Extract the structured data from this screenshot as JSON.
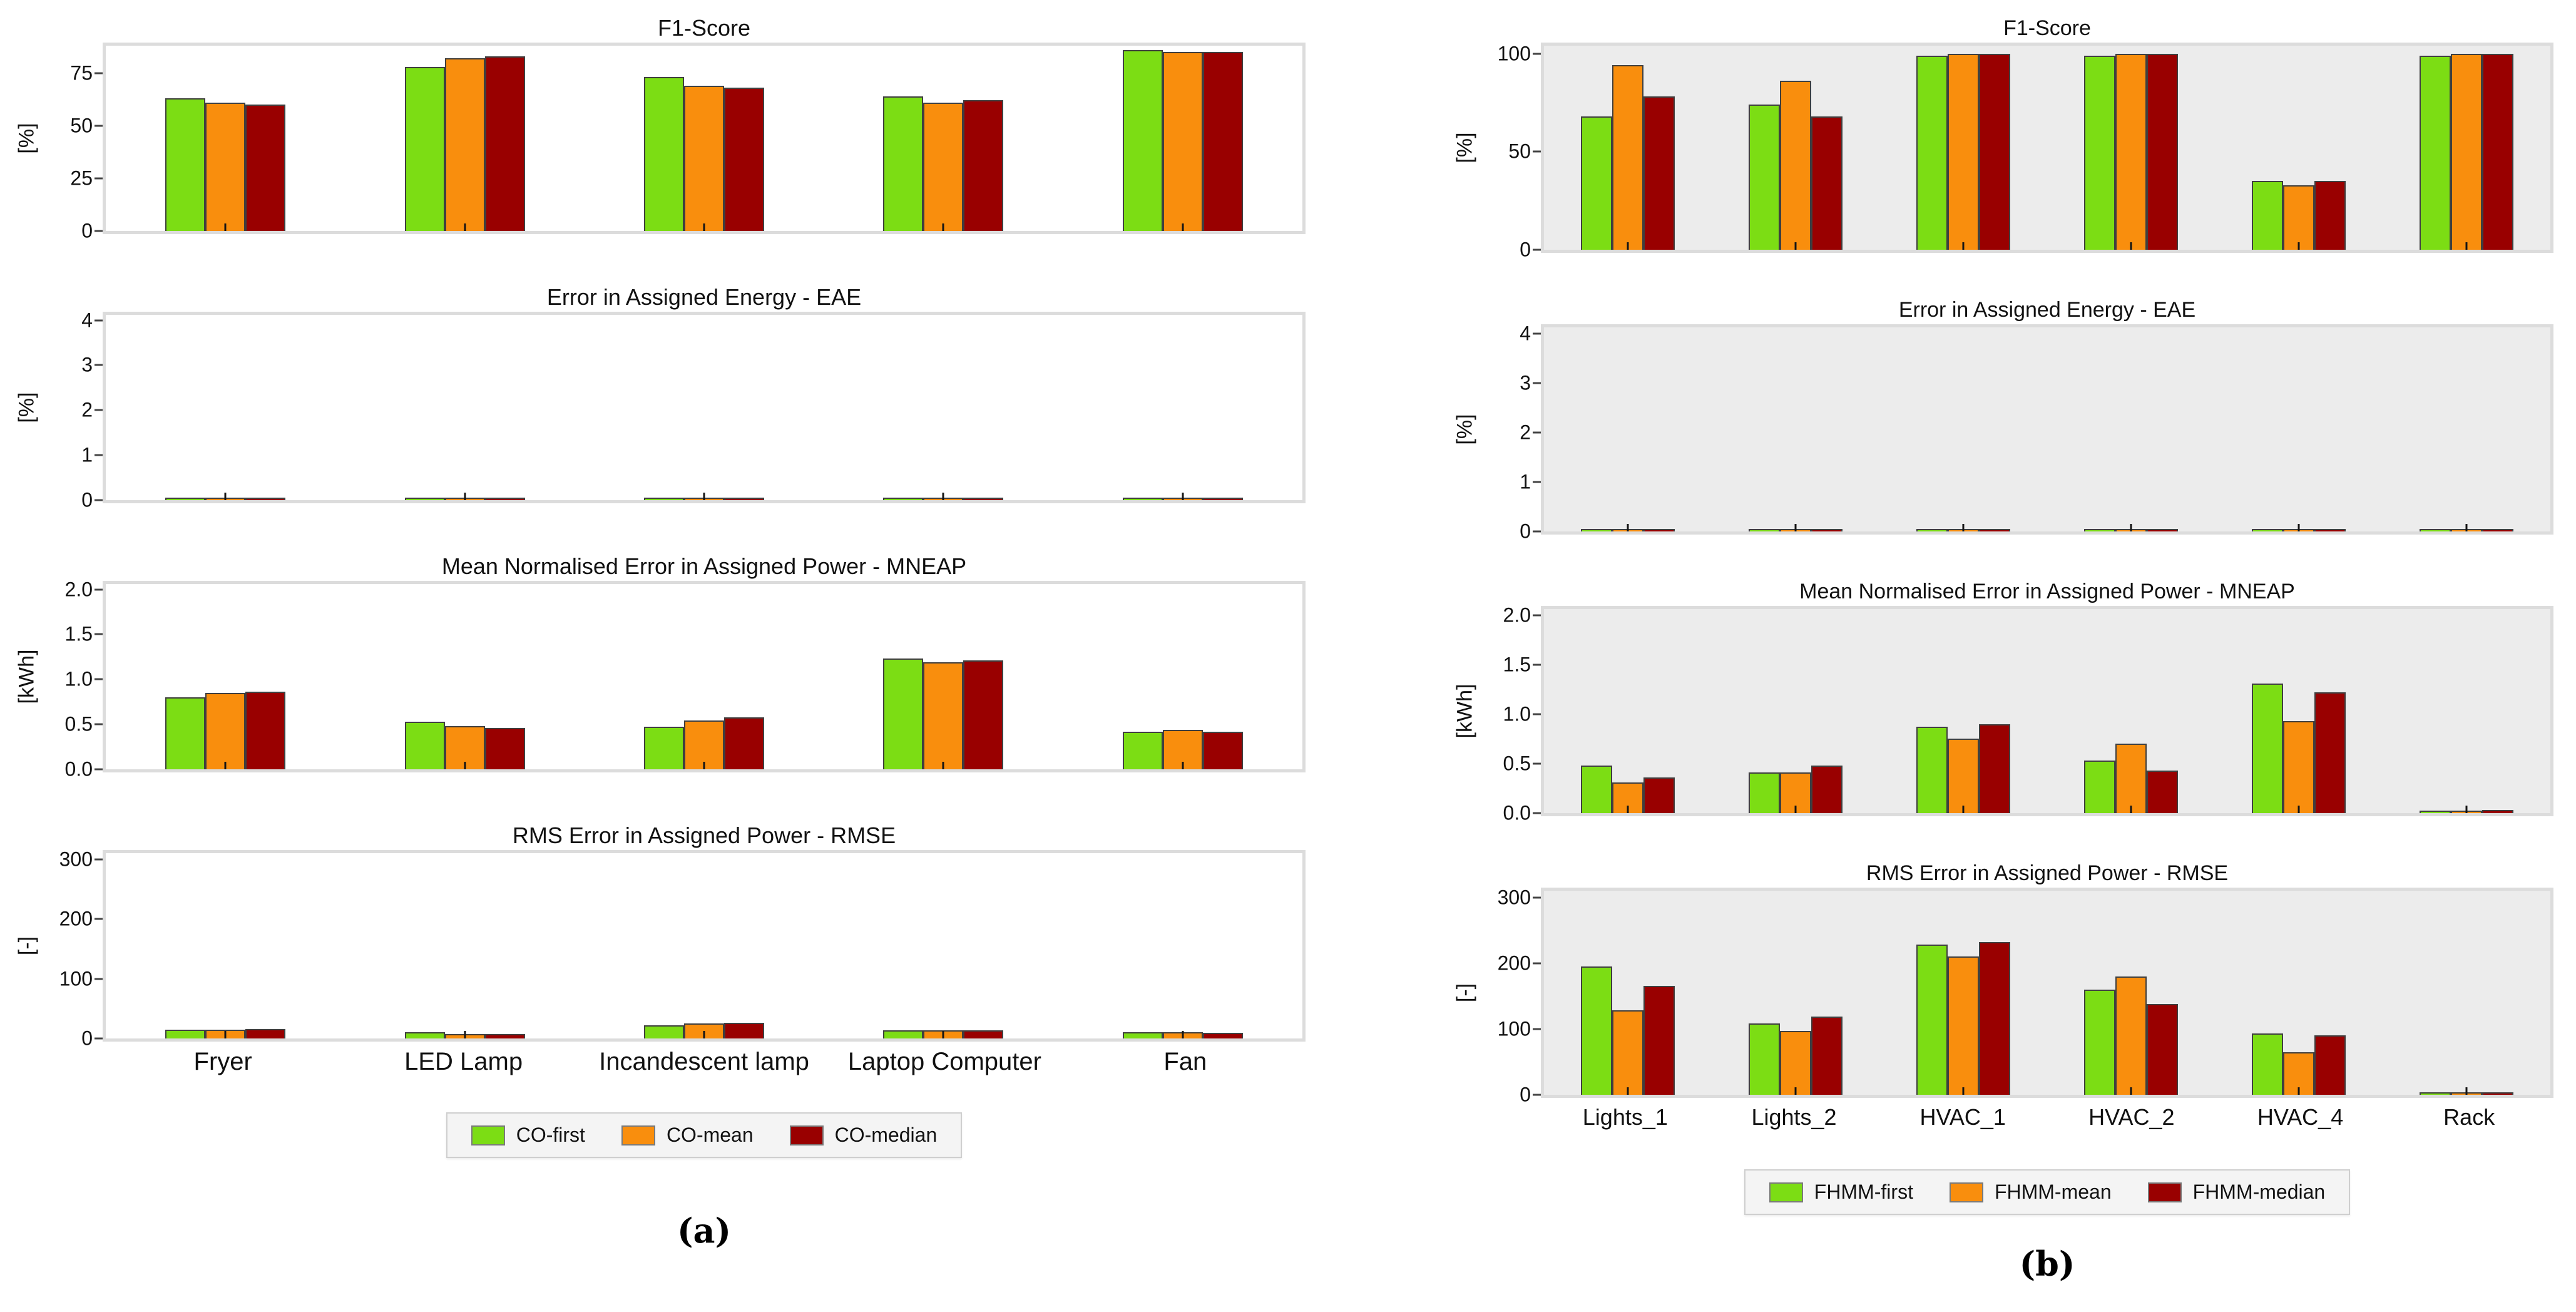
{
  "chart_data": {
    "type": "bar",
    "legend_position": "bottom",
    "grid": false,
    "bar_edge_color": "#3f3f3f",
    "panels": [
      {
        "id": "a",
        "caption": "(a)",
        "plot_background": "#ffffff",
        "categories": [
          "Fryer",
          "LED Lamp",
          "Incandescent lamp",
          "Laptop Computer",
          "Fan"
        ],
        "legend": [
          {
            "name": "CO-first",
            "color": "#7CDD14"
          },
          {
            "name": "CO-mean",
            "color": "#F98E0D"
          },
          {
            "name": "CO-median",
            "color": "#990000"
          }
        ],
        "charts": [
          {
            "title": "F1-Score",
            "ylabel": "[%]",
            "ylim": [
              0,
              88
            ],
            "yticks": [
              {
                "label": "0",
                "value": 0
              },
              {
                "label": "25",
                "value": 25
              },
              {
                "label": "50",
                "value": 50
              },
              {
                "label": "75",
                "value": 75
              }
            ],
            "series": [
              {
                "name": "CO-first",
                "values": [
                  63,
                  78,
                  73,
                  64,
                  86
                ]
              },
              {
                "name": "CO-mean",
                "values": [
                  61,
                  82,
                  69,
                  61,
                  85
                ]
              },
              {
                "name": "CO-median",
                "values": [
                  60,
                  83,
                  68,
                  62,
                  85
                ]
              }
            ]
          },
          {
            "title": "Error in Assigned Energy - EAE",
            "ylabel": "[%]",
            "ylim": [
              0,
              4.12
            ],
            "yticks": [
              {
                "label": "0",
                "value": 0
              },
              {
                "label": "1",
                "value": 1
              },
              {
                "label": "2",
                "value": 2
              },
              {
                "label": "3",
                "value": 3
              },
              {
                "label": "4",
                "value": 4
              }
            ],
            "series": [
              {
                "name": "CO-first",
                "values": [
                  0.02,
                  0.02,
                  0.02,
                  0.02,
                  0.02
                ]
              },
              {
                "name": "CO-mean",
                "values": [
                  0.02,
                  0.02,
                  0.02,
                  0.02,
                  0.02
                ]
              },
              {
                "name": "CO-median",
                "values": [
                  0.02,
                  0.02,
                  0.02,
                  0.02,
                  0.02
                ]
              }
            ]
          },
          {
            "title": "Mean Normalised Error in Assigned Power - MNEAP",
            "ylabel": "[kWh]",
            "ylim": [
              0,
              2.06
            ],
            "yticks": [
              {
                "label": "0.0",
                "value": 0
              },
              {
                "label": "0.5",
                "value": 0.5
              },
              {
                "label": "1.0",
                "value": 1
              },
              {
                "label": "1.5",
                "value": 1.5
              },
              {
                "label": "2.0",
                "value": 2
              }
            ],
            "series": [
              {
                "name": "CO-first",
                "values": [
                  0.8,
                  0.53,
                  0.47,
                  1.23,
                  0.42
                ]
              },
              {
                "name": "CO-mean",
                "values": [
                  0.85,
                  0.48,
                  0.54,
                  1.19,
                  0.44
                ]
              },
              {
                "name": "CO-median",
                "values": [
                  0.86,
                  0.46,
                  0.58,
                  1.21,
                  0.42
                ]
              }
            ]
          },
          {
            "title": "RMS Error in Assigned Power - RMSE",
            "ylabel": "[-]",
            "ylim": [
              0,
              310
            ],
            "yticks": [
              {
                "label": "0",
                "value": 0
              },
              {
                "label": "100",
                "value": 100
              },
              {
                "label": "200",
                "value": 200
              },
              {
                "label": "300",
                "value": 300
              }
            ],
            "series": [
              {
                "name": "CO-first",
                "values": [
                  15,
                  10,
                  22,
                  14,
                  10
                ]
              },
              {
                "name": "CO-mean",
                "values": [
                  15,
                  7,
                  25,
                  14,
                  10
                ]
              },
              {
                "name": "CO-median",
                "values": [
                  16,
                  7,
                  26,
                  14,
                  9
                ]
              }
            ]
          }
        ]
      },
      {
        "id": "b",
        "caption": "(b)",
        "plot_background": "#ececec",
        "categories": [
          "Lights_1",
          "Lights_2",
          "HVAC_1",
          "HVAC_2",
          "HVAC_4",
          "Rack"
        ],
        "legend": [
          {
            "name": "FHMM-first",
            "color": "#7CDD14"
          },
          {
            "name": "FHMM-mean",
            "color": "#F98E0D"
          },
          {
            "name": "FHMM-median",
            "color": "#990000"
          }
        ],
        "charts": [
          {
            "title": "F1-Score",
            "ylabel": "[%]",
            "ylim": [
              0,
              104
            ],
            "yticks": [
              {
                "label": "0",
                "value": 0
              },
              {
                "label": "50",
                "value": 50
              },
              {
                "label": "100",
                "value": 100
              }
            ],
            "series": [
              {
                "name": "FHMM-first",
                "values": [
                  68,
                  74,
                  99,
                  99,
                  35,
                  99
                ]
              },
              {
                "name": "FHMM-mean",
                "values": [
                  94,
                  86,
                  100,
                  100,
                  33,
                  100
                ]
              },
              {
                "name": "FHMM-median",
                "values": [
                  78,
                  68,
                  100,
                  100,
                  35,
                  100
                ]
              }
            ]
          },
          {
            "title": "Error in Assigned Energy - EAE",
            "ylabel": "[%]",
            "ylim": [
              0,
              4.12
            ],
            "yticks": [
              {
                "label": "0",
                "value": 0
              },
              {
                "label": "1",
                "value": 1
              },
              {
                "label": "2",
                "value": 2
              },
              {
                "label": "3",
                "value": 3
              },
              {
                "label": "4",
                "value": 4
              }
            ],
            "series": [
              {
                "name": "FHMM-first",
                "values": [
                  0.02,
                  0.02,
                  0.02,
                  0.02,
                  0.02,
                  0.02
                ]
              },
              {
                "name": "FHMM-mean",
                "values": [
                  0.02,
                  0.02,
                  0.02,
                  0.02,
                  0.02,
                  0.02
                ]
              },
              {
                "name": "FHMM-median",
                "values": [
                  0.02,
                  0.02,
                  0.02,
                  0.02,
                  0.02,
                  0.02
                ]
              }
            ]
          },
          {
            "title": "Mean Normalised Error in Assigned Power - MNEAP",
            "ylabel": "[kWh]",
            "ylim": [
              0,
              2.06
            ],
            "yticks": [
              {
                "label": "0.0",
                "value": 0
              },
              {
                "label": "0.5",
                "value": 0.5
              },
              {
                "label": "1.0",
                "value": 1
              },
              {
                "label": "1.5",
                "value": 1.5
              },
              {
                "label": "2.0",
                "value": 2
              }
            ],
            "series": [
              {
                "name": "FHMM-first",
                "values": [
                  0.48,
                  0.41,
                  0.87,
                  0.53,
                  1.31,
                  0.02
                ]
              },
              {
                "name": "FHMM-mean",
                "values": [
                  0.31,
                  0.41,
                  0.75,
                  0.7,
                  0.93,
                  0.02
                ]
              },
              {
                "name": "FHMM-median",
                "values": [
                  0.36,
                  0.48,
                  0.9,
                  0.43,
                  1.22,
                  0.03
                ]
              }
            ]
          },
          {
            "title": "RMS Error in Assigned Power - RMSE",
            "ylabel": "[-]",
            "ylim": [
              0,
              310
            ],
            "yticks": [
              {
                "label": "0",
                "value": 0
              },
              {
                "label": "100",
                "value": 100
              },
              {
                "label": "200",
                "value": 200
              },
              {
                "label": "300",
                "value": 300
              }
            ],
            "series": [
              {
                "name": "FHMM-first",
                "values": [
                  195,
                  108,
                  228,
                  160,
                  93,
                  1
                ]
              },
              {
                "name": "FHMM-mean",
                "values": [
                  128,
                  97,
                  210,
                  180,
                  65,
                  2
                ]
              },
              {
                "name": "FHMM-median",
                "values": [
                  165,
                  119,
                  232,
                  138,
                  90,
                  4
                ]
              }
            ]
          }
        ]
      }
    ]
  }
}
